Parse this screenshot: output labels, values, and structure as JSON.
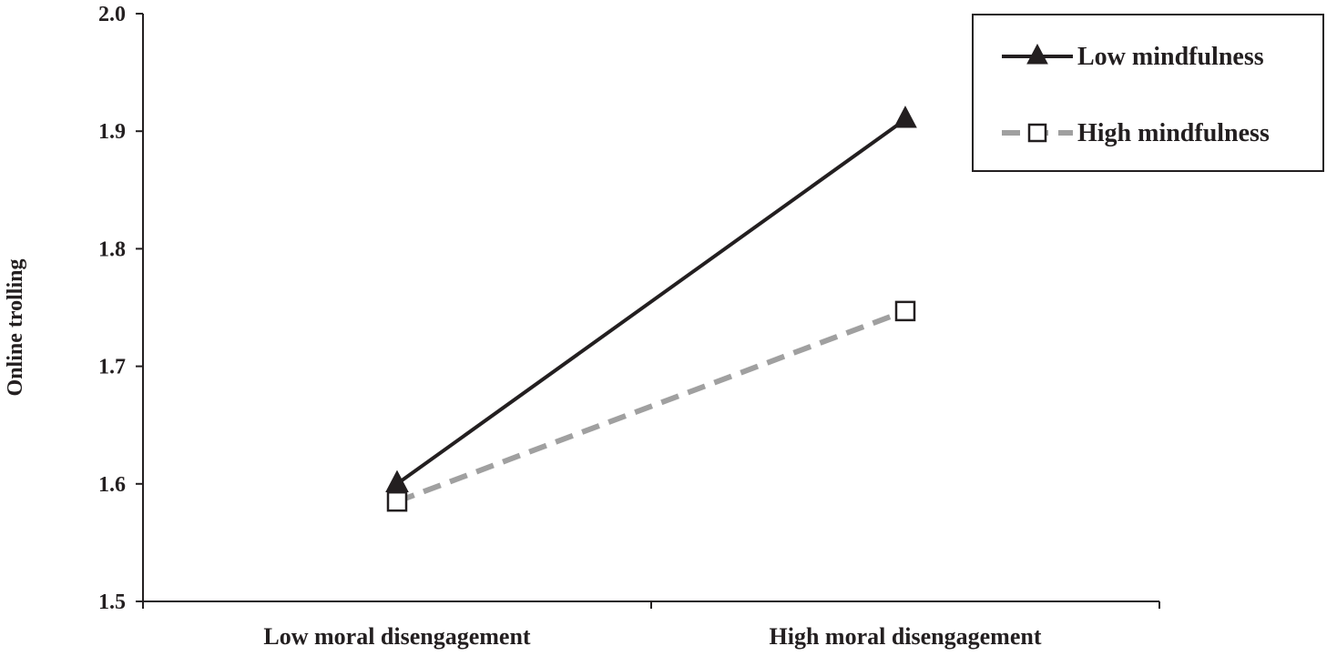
{
  "chart_data": {
    "type": "line",
    "title": "",
    "xlabel": "",
    "ylabel": "Online trolling",
    "ylim": [
      1.5,
      2.0
    ],
    "yticks": [
      "1.5",
      "1.6",
      "1.7",
      "1.8",
      "1.9",
      "2.0"
    ],
    "categories": [
      "Low moral disengagement",
      "High moral disengagement"
    ],
    "series": [
      {
        "name": "Low mindfulness",
        "values": [
          1.6,
          1.91
        ],
        "color": "#231f20",
        "style": "solid",
        "marker": "filled-triangle"
      },
      {
        "name": "High mindfulness",
        "values": [
          1.585,
          1.747
        ],
        "color": "#a0a0a0",
        "style": "dashed",
        "marker": "open-square"
      }
    ],
    "grid": false,
    "legend": "top-right"
  }
}
